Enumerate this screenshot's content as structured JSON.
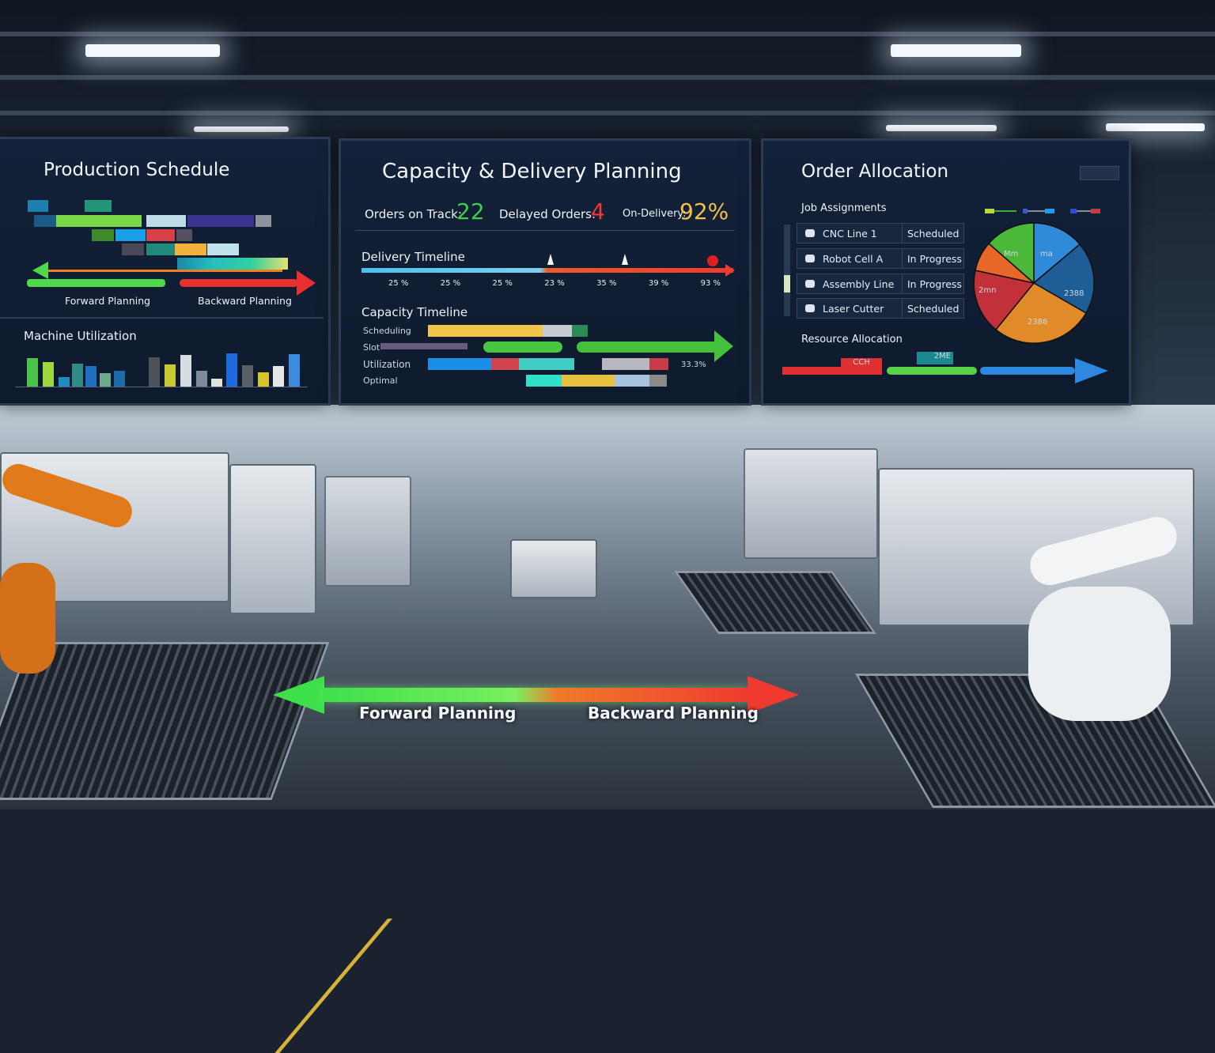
{
  "production_schedule": {
    "title": "Production Schedule",
    "forward_label": "Forward Planning",
    "backward_label": "Backward Planning",
    "machine_utilization_title": "Machine Utilization"
  },
  "capacity_delivery": {
    "title": "Capacity & Delivery Planning",
    "orders_on_track_label": "Orders on Track:",
    "orders_on_track_value": "22",
    "delayed_orders_label": "Delayed Orders:",
    "delayed_orders_value": "4",
    "on_delivery_label": "On-Delivery:",
    "on_delivery_value": "92%",
    "delivery_timeline_title": "Delivery Timeline",
    "delivery_ticks": [
      "25 %",
      "25 %",
      "25 %",
      "23 %",
      "35 %",
      "39 %",
      "93 %"
    ],
    "capacity_timeline_title": "Capacity Timeline",
    "capacity_rows": [
      "Scheduling",
      "Slot",
      "Utilization",
      "Optimal"
    ],
    "capacity_note": "33.3%"
  },
  "order_allocation": {
    "title": "Order Allocation",
    "job_assignments_title": "Job Assignments",
    "jobs": [
      {
        "name": "CNC Line 1",
        "status": "Scheduled"
      },
      {
        "name": "Robot Cell A",
        "status": "In Progress"
      },
      {
        "name": "Assembly Line",
        "status": "In Progress"
      },
      {
        "name": "Laser Cutter",
        "status": "Scheduled"
      }
    ],
    "pie_labels": [
      "Mm",
      "ma",
      "2388",
      "2386",
      "2mn"
    ],
    "resource_allocation_title": "Resource Allocation",
    "resource_tags": [
      "CCH",
      "2ME"
    ]
  },
  "floor_arrow": {
    "forward_label": "Forward Planning",
    "backward_label": "Backward Planning"
  }
}
